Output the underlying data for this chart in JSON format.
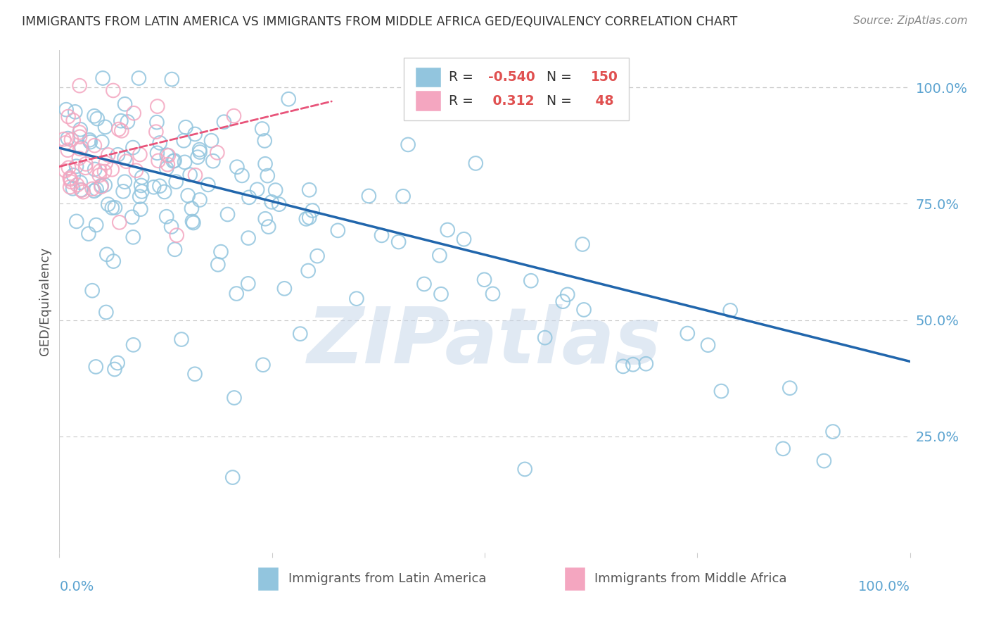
{
  "title": "IMMIGRANTS FROM LATIN AMERICA VS IMMIGRANTS FROM MIDDLE AFRICA GED/EQUIVALENCY CORRELATION CHART",
  "source": "Source: ZipAtlas.com",
  "ylabel": "GED/Equivalency",
  "watermark": "ZIPatlas",
  "series1_label": "Immigrants from Latin America",
  "series2_label": "Immigrants from Middle Africa",
  "series1_color": "#92c5de",
  "series2_color": "#f4a6c0",
  "series1_R": -0.54,
  "series1_N": 150,
  "series2_R": 0.312,
  "series2_N": 48,
  "series1_line_color": "#2166ac",
  "series2_line_color": "#e8547a",
  "title_color": "#333333",
  "source_color": "#888888",
  "axis_label_color": "#5ba3d0",
  "grid_color": "#c8c8c8",
  "background_color": "#ffffff",
  "xlim": [
    0.0,
    1.0
  ],
  "ylim": [
    0.0,
    1.08
  ],
  "yticks": [
    0.0,
    0.25,
    0.5,
    0.75,
    1.0
  ],
  "ytick_labels": [
    "",
    "25.0%",
    "50.0%",
    "75.0%",
    "100.0%"
  ],
  "seed1": 42,
  "seed2": 99
}
